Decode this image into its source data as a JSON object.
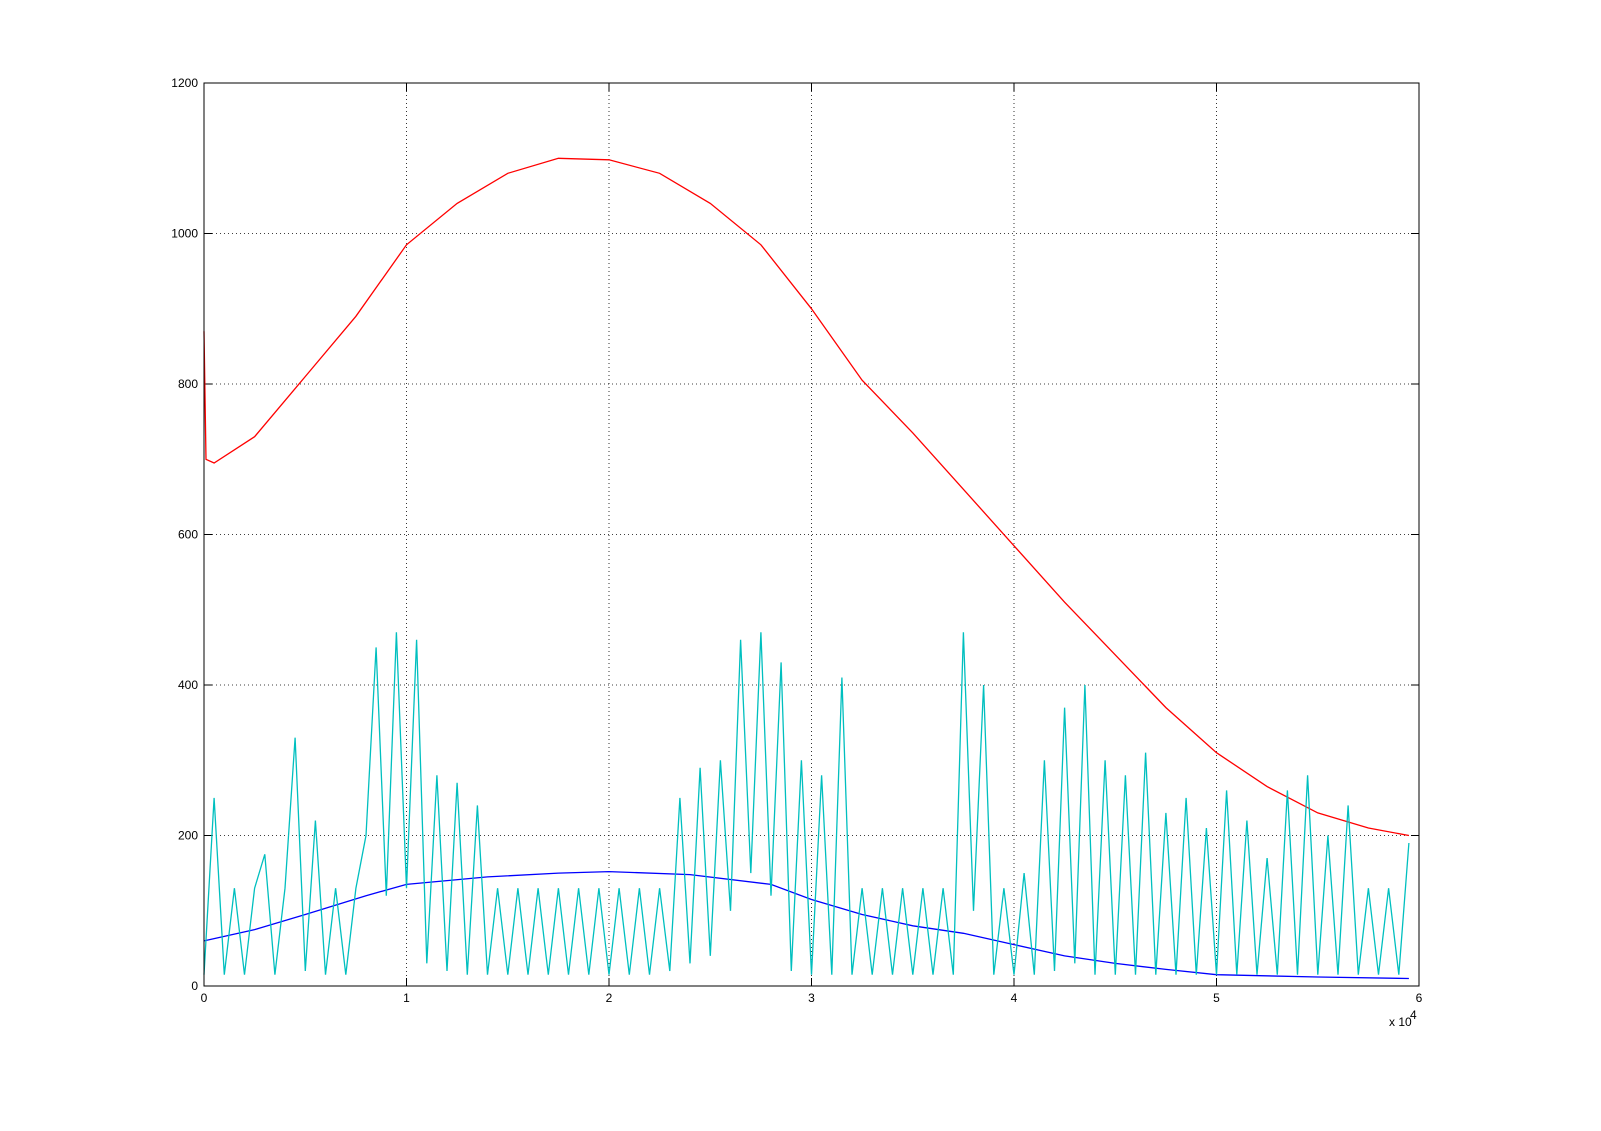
{
  "chart_data": {
    "type": "line",
    "xlim": [
      0,
      6
    ],
    "xticks": [
      0,
      1,
      2,
      3,
      4,
      5,
      6
    ],
    "x_multiplier": "x 10",
    "x_multiplier_exponent": "4",
    "ylim": [
      0,
      1200
    ],
    "yticks": [
      0,
      200,
      400,
      600,
      800,
      1000,
      1200
    ],
    "grid": true,
    "series": [
      {
        "color": "#ff0000",
        "x": [
          0,
          0.01,
          0.05,
          0.25,
          0.5,
          0.75,
          1.0,
          1.25,
          1.5,
          1.75,
          2.0,
          2.25,
          2.5,
          2.75,
          3.0,
          3.25,
          3.5,
          3.75,
          4.0,
          4.25,
          4.5,
          4.75,
          5.0,
          5.25,
          5.5,
          5.75,
          5.95
        ],
        "values": [
          870,
          700,
          695,
          730,
          810,
          890,
          985,
          1040,
          1080,
          1100,
          1098,
          1080,
          1040,
          985,
          900,
          805,
          735,
          660,
          585,
          510,
          440,
          370,
          310,
          265,
          230,
          210,
          200
        ]
      },
      {
        "color": "#0000ff",
        "x": [
          0,
          0.25,
          0.5,
          0.8,
          1.0,
          1.4,
          1.75,
          2.0,
          2.4,
          2.8,
          3.0,
          3.25,
          3.5,
          3.75,
          4.0,
          4.25,
          4.5,
          4.75,
          5.0,
          5.5,
          5.95
        ],
        "values": [
          60,
          75,
          95,
          120,
          135,
          145,
          150,
          152,
          148,
          135,
          115,
          95,
          80,
          70,
          55,
          40,
          30,
          22,
          15,
          12,
          10
        ]
      },
      {
        "color": "#00bfbf",
        "x": [
          0,
          0.05,
          0.1,
          0.15,
          0.2,
          0.25,
          0.3,
          0.35,
          0.4,
          0.45,
          0.5,
          0.55,
          0.6,
          0.65,
          0.7,
          0.75,
          0.8,
          0.85,
          0.9,
          0.95,
          1.0,
          1.05,
          1.1,
          1.15,
          1.2,
          1.25,
          1.3,
          1.35,
          1.4,
          1.45,
          1.5,
          1.55,
          1.6,
          1.65,
          1.7,
          1.75,
          1.8,
          1.85,
          1.9,
          1.95,
          2.0,
          2.05,
          2.1,
          2.15,
          2.2,
          2.25,
          2.3,
          2.35,
          2.4,
          2.45,
          2.5,
          2.55,
          2.6,
          2.65,
          2.7,
          2.75,
          2.8,
          2.85,
          2.9,
          2.95,
          3.0,
          3.05,
          3.1,
          3.15,
          3.2,
          3.25,
          3.3,
          3.35,
          3.4,
          3.45,
          3.5,
          3.55,
          3.6,
          3.65,
          3.7,
          3.75,
          3.8,
          3.85,
          3.9,
          3.95,
          4.0,
          4.05,
          4.1,
          4.15,
          4.2,
          4.25,
          4.3,
          4.35,
          4.4,
          4.45,
          4.5,
          4.55,
          4.6,
          4.65,
          4.7,
          4.75,
          4.8,
          4.85,
          4.9,
          4.95,
          5.0,
          5.05,
          5.1,
          5.15,
          5.2,
          5.25,
          5.3,
          5.35,
          5.4,
          5.45,
          5.5,
          5.55,
          5.6,
          5.65,
          5.7,
          5.75,
          5.8,
          5.85,
          5.9,
          5.95
        ],
        "values": [
          15,
          250,
          15,
          130,
          15,
          130,
          175,
          15,
          130,
          330,
          20,
          220,
          15,
          130,
          15,
          130,
          200,
          450,
          120,
          470,
          130,
          460,
          30,
          280,
          20,
          270,
          15,
          240,
          15,
          130,
          15,
          130,
          15,
          130,
          15,
          130,
          15,
          130,
          15,
          130,
          15,
          130,
          15,
          130,
          15,
          130,
          20,
          250,
          30,
          290,
          40,
          300,
          100,
          460,
          150,
          470,
          120,
          430,
          20,
          300,
          15,
          280,
          15,
          410,
          15,
          130,
          15,
          130,
          15,
          130,
          15,
          130,
          15,
          130,
          15,
          470,
          100,
          400,
          15,
          130,
          15,
          150,
          15,
          300,
          20,
          370,
          30,
          400,
          15,
          300,
          15,
          280,
          15,
          310,
          15,
          230,
          15,
          250,
          15,
          210,
          15,
          260,
          15,
          220,
          15,
          170,
          15,
          260,
          15,
          280,
          15,
          200,
          15,
          240,
          15,
          130,
          15,
          130,
          15,
          190
        ]
      }
    ]
  }
}
